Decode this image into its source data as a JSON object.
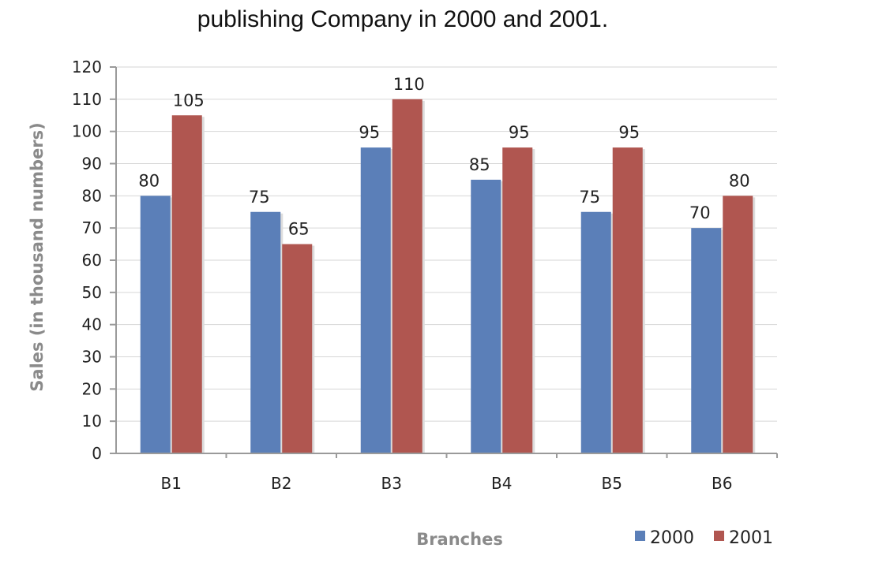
{
  "chart_data": {
    "type": "bar",
    "title": "publishing Company in 2000 and 2001.",
    "xlabel": "Branches",
    "ylabel": "Sales (in thousand numbers)",
    "categories": [
      "B1",
      "B2",
      "B3",
      "B4",
      "B5",
      "B6"
    ],
    "series": [
      {
        "name": "2000",
        "values": [
          80,
          75,
          95,
          85,
          75,
          70
        ],
        "color": "#5b7fb8"
      },
      {
        "name": "2001",
        "values": [
          105,
          65,
          110,
          95,
          95,
          80
        ],
        "color": "#b05650"
      }
    ],
    "ylim": [
      0,
      120
    ],
    "yticks": [
      0,
      10,
      20,
      30,
      40,
      50,
      60,
      70,
      80,
      90,
      100,
      110,
      120
    ],
    "grid": true,
    "legend": "bottom-right"
  }
}
